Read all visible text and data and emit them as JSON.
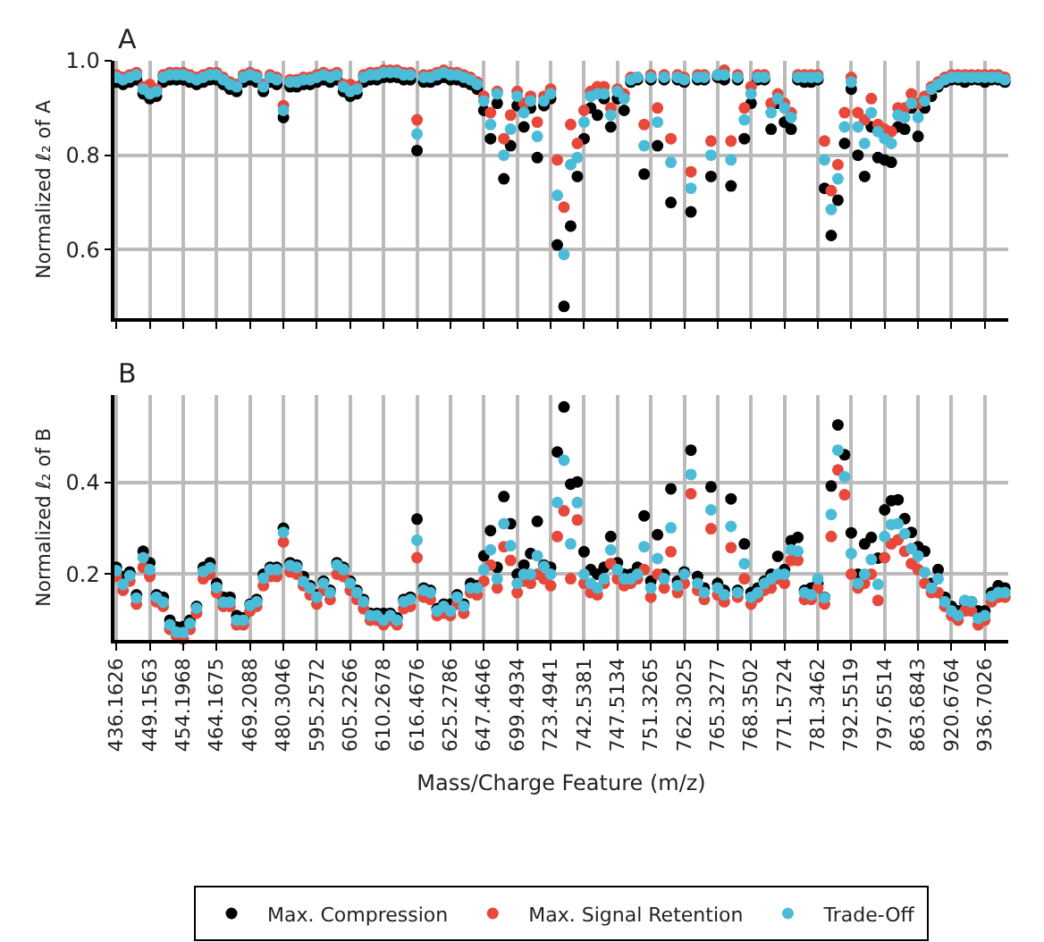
{
  "chart_data": [
    {
      "type": "scatter",
      "title": "A",
      "ylabel": "Normalized ℓ₂ of A",
      "ylim": [
        0.455,
        1.0
      ],
      "yticks": [
        0.6,
        0.8,
        {
          "value": 1.0,
          "label": "1.0"
        }
      ],
      "grid": true,
      "marker": "circle",
      "tick_labels": "y",
      "categories": [
        "436.1626",
        null,
        null,
        null,
        null,
        "449.1563",
        null,
        null,
        null,
        null,
        "454.1968",
        null,
        null,
        null,
        null,
        "464.1675",
        null,
        null,
        null,
        null,
        "469.2088",
        null,
        null,
        null,
        null,
        "480.3046",
        null,
        null,
        null,
        null,
        "595.2572",
        null,
        null,
        null,
        null,
        "605.2266",
        null,
        null,
        null,
        null,
        "610.2678",
        null,
        null,
        null,
        null,
        "616.4676",
        null,
        null,
        null,
        null,
        "625.2786",
        null,
        null,
        null,
        null,
        "647.4646",
        null,
        null,
        null,
        null,
        "699.4934",
        null,
        null,
        null,
        null,
        "723.4941",
        null,
        null,
        null,
        null,
        "742.5381",
        null,
        null,
        null,
        null,
        "747.5134",
        null,
        null,
        null,
        null,
        "751.3265",
        null,
        null,
        null,
        null,
        "762.3025",
        null,
        null,
        null,
        null,
        "765.3277",
        null,
        null,
        null,
        null,
        "768.3502",
        null,
        null,
        null,
        null,
        "771.5724",
        null,
        null,
        null,
        null,
        "781.3462",
        null,
        null,
        null,
        null,
        "792.5519",
        null,
        null,
        null,
        null,
        "797.6514",
        null,
        null,
        null,
        null,
        "863.6843",
        null,
        null,
        null,
        null,
        "920.6764",
        null,
        null,
        null,
        null,
        "936.7026",
        null,
        null,
        null
      ],
      "series": [
        {
          "color": "#000000",
          "values": [
            0.955,
            0.95,
            0.955,
            0.96,
            0.93,
            0.92,
            0.925,
            0.955,
            0.96,
            0.96,
            0.96,
            0.955,
            0.95,
            0.955,
            0.96,
            0.96,
            0.95,
            0.94,
            0.935,
            0.955,
            0.96,
            0.955,
            0.935,
            0.955,
            0.95,
            0.88,
            0.945,
            0.945,
            0.95,
            0.95,
            0.955,
            0.96,
            0.955,
            0.96,
            0.935,
            0.925,
            0.93,
            0.955,
            0.96,
            0.96,
            0.965,
            0.965,
            0.965,
            0.96,
            0.96,
            0.81,
            0.955,
            0.955,
            0.96,
            0.965,
            0.96,
            0.96,
            0.955,
            0.95,
            0.94,
            0.895,
            0.835,
            0.91,
            0.75,
            0.82,
            0.905,
            0.86,
            0.9,
            0.795,
            0.905,
            0.92,
            0.61,
            0.48,
            0.65,
            0.755,
            0.835,
            0.9,
            0.885,
            0.92,
            0.86,
            0.92,
            0.895,
            0.955,
            0.96,
            0.76,
            0.96,
            0.82,
            0.96,
            0.7,
            0.96,
            0.955,
            0.68,
            0.96,
            0.96,
            0.755,
            0.965,
            0.96,
            0.735,
            0.96,
            0.835,
            0.91,
            0.96,
            0.96,
            0.855,
            0.91,
            0.87,
            0.855,
            0.96,
            0.955,
            0.955,
            0.96,
            0.73,
            0.63,
            0.705,
            0.825,
            0.94,
            0.8,
            0.755,
            0.86,
            0.795,
            0.79,
            0.785,
            0.86,
            0.855,
            0.9,
            0.84,
            0.9,
            0.925,
            0.945,
            0.955,
            0.96,
            0.96,
            0.955,
            0.96,
            0.96,
            0.955,
            0.96,
            0.96,
            0.955
          ]
        },
        {
          "color": "#e8483a",
          "values": [
            0.97,
            0.965,
            0.97,
            0.975,
            0.945,
            0.95,
            0.94,
            0.97,
            0.975,
            0.975,
            0.975,
            0.97,
            0.965,
            0.97,
            0.975,
            0.975,
            0.965,
            0.955,
            0.95,
            0.97,
            0.975,
            0.97,
            0.95,
            0.97,
            0.965,
            0.905,
            0.96,
            0.96,
            0.965,
            0.965,
            0.97,
            0.975,
            0.97,
            0.975,
            0.95,
            0.95,
            0.945,
            0.97,
            0.975,
            0.975,
            0.98,
            0.98,
            0.98,
            0.975,
            0.975,
            0.875,
            0.97,
            0.97,
            0.975,
            0.98,
            0.975,
            0.975,
            0.97,
            0.965,
            0.955,
            0.925,
            0.89,
            0.935,
            0.835,
            0.885,
            0.935,
            0.91,
            0.925,
            0.87,
            0.925,
            0.94,
            0.79,
            0.69,
            0.865,
            0.825,
            0.895,
            0.935,
            0.945,
            0.945,
            0.9,
            0.94,
            0.93,
            0.965,
            0.965,
            0.865,
            0.97,
            0.9,
            0.97,
            0.835,
            0.97,
            0.965,
            0.765,
            0.97,
            0.97,
            0.83,
            0.97,
            0.98,
            0.83,
            0.97,
            0.9,
            0.945,
            0.97,
            0.97,
            0.91,
            0.93,
            0.91,
            0.89,
            0.97,
            0.97,
            0.97,
            0.97,
            0.83,
            0.725,
            0.78,
            0.89,
            0.965,
            0.89,
            0.875,
            0.92,
            0.865,
            0.855,
            0.85,
            0.9,
            0.9,
            0.93,
            0.91,
            0.925,
            0.945,
            0.955,
            0.965,
            0.97,
            0.97,
            0.97,
            0.97,
            0.97,
            0.97,
            0.97,
            0.97,
            0.965
          ]
        },
        {
          "color": "#4bbcd8",
          "values": [
            0.965,
            0.96,
            0.965,
            0.97,
            0.94,
            0.93,
            0.935,
            0.965,
            0.97,
            0.97,
            0.97,
            0.965,
            0.96,
            0.965,
            0.97,
            0.97,
            0.96,
            0.95,
            0.945,
            0.965,
            0.97,
            0.965,
            0.945,
            0.965,
            0.96,
            0.895,
            0.955,
            0.955,
            0.96,
            0.96,
            0.965,
            0.97,
            0.965,
            0.97,
            0.945,
            0.935,
            0.94,
            0.965,
            0.97,
            0.97,
            0.975,
            0.975,
            0.975,
            0.97,
            0.97,
            0.845,
            0.965,
            0.965,
            0.97,
            0.975,
            0.97,
            0.97,
            0.965,
            0.96,
            0.95,
            0.915,
            0.865,
            0.93,
            0.8,
            0.855,
            0.925,
            0.89,
            0.915,
            0.84,
            0.915,
            0.93,
            0.715,
            0.59,
            0.78,
            0.795,
            0.87,
            0.925,
            0.93,
            0.93,
            0.885,
            0.935,
            0.92,
            0.96,
            0.965,
            0.82,
            0.965,
            0.87,
            0.965,
            0.785,
            0.965,
            0.96,
            0.73,
            0.965,
            0.965,
            0.8,
            0.97,
            0.97,
            0.79,
            0.965,
            0.875,
            0.93,
            0.965,
            0.965,
            0.89,
            0.92,
            0.9,
            0.88,
            0.965,
            0.965,
            0.965,
            0.965,
            0.79,
            0.685,
            0.75,
            0.86,
            0.955,
            0.86,
            0.825,
            0.89,
            0.85,
            0.835,
            0.825,
            0.885,
            0.88,
            0.91,
            0.88,
            0.915,
            0.94,
            0.95,
            0.96,
            0.965,
            0.965,
            0.965,
            0.965,
            0.965,
            0.965,
            0.965,
            0.965,
            0.96
          ]
        }
      ]
    },
    {
      "type": "scatter",
      "title": "B",
      "ylabel": "Normalized ℓ₂ of B",
      "xlabel": "Mass/Charge Feature (m/z)",
      "ylim": [
        0.057,
        0.59
      ],
      "yticks": [
        0.2,
        0.4
      ],
      "grid": true,
      "marker": "circle",
      "legend": "bottom",
      "categories": [
        "436.1626",
        null,
        null,
        null,
        null,
        "449.1563",
        null,
        null,
        null,
        null,
        "454.1968",
        null,
        null,
        null,
        null,
        "464.1675",
        null,
        null,
        null,
        null,
        "469.2088",
        null,
        null,
        null,
        null,
        "480.3046",
        null,
        null,
        null,
        null,
        "595.2572",
        null,
        null,
        null,
        null,
        "605.2266",
        null,
        null,
        null,
        null,
        "610.2678",
        null,
        null,
        null,
        null,
        "616.4676",
        null,
        null,
        null,
        null,
        "625.2786",
        null,
        null,
        null,
        null,
        "647.4646",
        null,
        null,
        null,
        null,
        "699.4934",
        null,
        null,
        null,
        null,
        "723.4941",
        null,
        null,
        null,
        null,
        "742.5381",
        null,
        null,
        null,
        null,
        "747.5134",
        null,
        null,
        null,
        null,
        "751.3265",
        null,
        null,
        null,
        null,
        "762.3025",
        null,
        null,
        null,
        null,
        "765.3277",
        null,
        null,
        null,
        null,
        "768.3502",
        null,
        null,
        null,
        null,
        "771.5724",
        null,
        null,
        null,
        null,
        "781.3462",
        null,
        null,
        null,
        null,
        "792.5519",
        null,
        null,
        null,
        null,
        "797.6514",
        null,
        null,
        null,
        null,
        "863.6843",
        null,
        null,
        null,
        null,
        "920.6764",
        null,
        null,
        null,
        null,
        "936.7026",
        null,
        null,
        null
      ],
      "series": [
        {
          "name": "Max. Compression",
          "color": "#000000",
          "values": [
            0.215,
            0.195,
            0.205,
            0.155,
            0.25,
            0.225,
            0.155,
            0.15,
            0.1,
            0.085,
            0.086,
            0.1,
            0.13,
            0.215,
            0.225,
            0.18,
            0.15,
            0.15,
            0.11,
            0.105,
            0.135,
            0.145,
            0.2,
            0.215,
            0.215,
            0.3,
            0.225,
            0.22,
            0.195,
            0.175,
            0.155,
            0.185,
            0.165,
            0.225,
            0.215,
            0.185,
            0.165,
            0.145,
            0.115,
            0.115,
            0.115,
            0.115,
            0.105,
            0.145,
            0.15,
            0.32,
            0.17,
            0.165,
            0.125,
            0.135,
            0.135,
            0.155,
            0.135,
            0.18,
            0.175,
            0.24,
            0.295,
            0.215,
            0.369,
            0.31,
            0.2,
            0.22,
            0.245,
            0.315,
            0.22,
            0.215,
            0.466,
            0.564,
            0.396,
            0.401,
            0.249,
            0.21,
            0.2,
            0.215,
            0.282,
            0.225,
            0.2,
            0.2,
            0.215,
            0.327,
            0.185,
            0.286,
            0.2,
            0.386,
            0.185,
            0.205,
            0.47,
            0.195,
            0.17,
            0.39,
            0.18,
            0.165,
            0.364,
            0.165,
            0.266,
            0.16,
            0.17,
            0.185,
            0.2,
            0.239,
            0.21,
            0.273,
            0.28,
            0.165,
            0.17,
            0.18,
            0.15,
            0.392,
            0.525,
            0.46,
            0.29,
            0.2,
            0.266,
            0.28,
            0.235,
            0.34,
            0.36,
            0.362,
            0.321,
            0.291,
            0.26,
            0.25,
            0.18,
            0.21,
            0.15,
            0.13,
            0.12,
            0.14,
            0.14,
            0.12,
            0.12,
            0.16,
            0.175,
            0.17
          ]
        },
        {
          "name": "Max. Signal Retention",
          "color": "#e8483a",
          "values": [
            0.195,
            0.165,
            0.185,
            0.135,
            0.215,
            0.195,
            0.14,
            0.13,
            0.08,
            0.065,
            0.059,
            0.08,
            0.115,
            0.19,
            0.2,
            0.16,
            0.13,
            0.13,
            0.09,
            0.09,
            0.12,
            0.13,
            0.175,
            0.195,
            0.195,
            0.27,
            0.205,
            0.2,
            0.175,
            0.155,
            0.135,
            0.165,
            0.145,
            0.2,
            0.195,
            0.165,
            0.145,
            0.125,
            0.1,
            0.1,
            0.09,
            0.1,
            0.09,
            0.125,
            0.13,
            0.236,
            0.15,
            0.145,
            0.11,
            0.115,
            0.11,
            0.135,
            0.115,
            0.16,
            0.155,
            0.185,
            0.22,
            0.17,
            0.26,
            0.23,
            0.16,
            0.185,
            0.18,
            0.2,
            0.19,
            0.175,
            0.282,
            0.338,
            0.19,
            0.318,
            0.18,
            0.16,
            0.155,
            0.18,
            0.223,
            0.19,
            0.175,
            0.18,
            0.19,
            0.21,
            0.15,
            0.2,
            0.17,
            0.249,
            0.16,
            0.18,
            0.375,
            0.165,
            0.145,
            0.299,
            0.155,
            0.14,
            0.258,
            0.15,
            0.19,
            0.135,
            0.15,
            0.165,
            0.17,
            0.19,
            0.18,
            0.23,
            0.23,
            0.145,
            0.145,
            0.17,
            0.135,
            0.282,
            0.427,
            0.373,
            0.2,
            0.17,
            0.18,
            0.2,
            0.143,
            0.236,
            0.266,
            0.275,
            0.25,
            0.223,
            0.21,
            0.18,
            0.16,
            0.16,
            0.13,
            0.11,
            0.1,
            0.12,
            0.12,
            0.09,
            0.1,
            0.14,
            0.15,
            0.15
          ]
        },
        {
          "name": "Trade-Off",
          "color": "#4bbcd8",
          "values": [
            0.208,
            0.178,
            0.197,
            0.148,
            0.236,
            0.21,
            0.15,
            0.139,
            0.09,
            0.074,
            0.073,
            0.093,
            0.126,
            0.206,
            0.214,
            0.171,
            0.139,
            0.139,
            0.1,
            0.1,
            0.132,
            0.14,
            0.191,
            0.21,
            0.21,
            0.291,
            0.219,
            0.215,
            0.184,
            0.17,
            0.15,
            0.18,
            0.16,
            0.22,
            0.21,
            0.18,
            0.16,
            0.14,
            0.11,
            0.11,
            0.1,
            0.11,
            0.1,
            0.14,
            0.145,
            0.274,
            0.165,
            0.16,
            0.12,
            0.13,
            0.12,
            0.15,
            0.13,
            0.17,
            0.17,
            0.21,
            0.253,
            0.19,
            0.31,
            0.262,
            0.18,
            0.2,
            0.2,
            0.24,
            0.217,
            0.2,
            0.356,
            0.448,
            0.266,
            0.356,
            0.2,
            0.18,
            0.17,
            0.19,
            0.253,
            0.21,
            0.19,
            0.19,
            0.2,
            0.26,
            0.17,
            0.234,
            0.19,
            0.301,
            0.175,
            0.2,
            0.417,
            0.18,
            0.16,
            0.34,
            0.17,
            0.155,
            0.304,
            0.16,
            0.223,
            0.15,
            0.16,
            0.18,
            0.19,
            0.2,
            0.2,
            0.253,
            0.25,
            0.16,
            0.155,
            0.19,
            0.149,
            0.33,
            0.47,
            0.412,
            0.245,
            0.18,
            0.2,
            0.232,
            0.178,
            0.282,
            0.308,
            0.31,
            0.288,
            0.256,
            0.24,
            0.204,
            0.17,
            0.19,
            0.14,
            0.12,
            0.11,
            0.143,
            0.14,
            0.104,
            0.11,
            0.152,
            0.16,
            0.16
          ]
        }
      ]
    }
  ]
}
